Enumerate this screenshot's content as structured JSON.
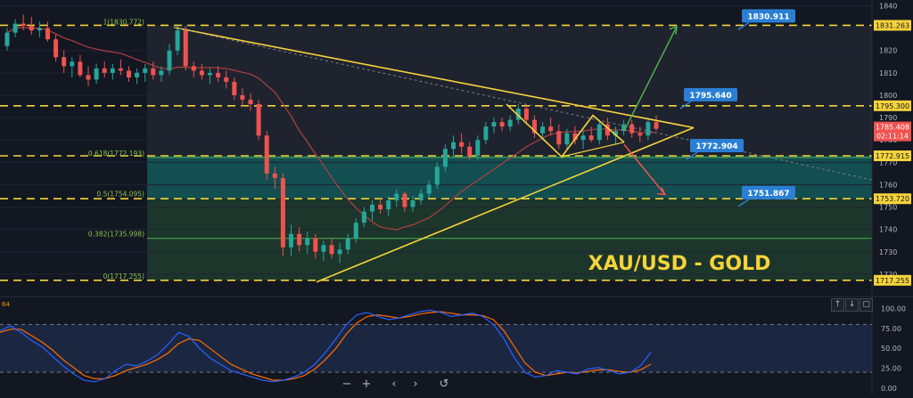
{
  "colors": {
    "background": "#131722",
    "up": "#26a69a",
    "down": "#ef5350",
    "level": "#f5d33b",
    "triangle": "#f5d33b",
    "target_up": "#4caf50",
    "target_down": "#ef5350",
    "callout": "#2a7fd4",
    "fib_green": "#4caf50",
    "fib_teal": "#145457",
    "stoch_k": "#2962ff",
    "stoch_d": "#ff6d00",
    "ma": "#b04040",
    "title": "#f5d33b"
  },
  "chart_data": {
    "type": "candlestick",
    "symbol_label": "XAU/USD - GOLD",
    "price_axis": {
      "ylim": [
        1712,
        1841
      ],
      "ticks": [
        1840,
        1830,
        1820,
        1810,
        1800,
        1790,
        1780,
        1770,
        1760,
        1750,
        1740,
        1730,
        1720
      ],
      "current_price": "1785.408",
      "countdown": "02:11:14"
    },
    "level_tags": [
      "1831.263",
      "1795.300",
      "1772.915",
      "1753.720",
      "1717.255"
    ],
    "horizontal_levels": [
      1831.263,
      1795.3,
      1772.915,
      1753.72,
      1717.255
    ],
    "fib_labels": [
      {
        "text": "1(1830.772)",
        "price": 1830.772
      },
      {
        "text": "0.618(1772.193)",
        "price": 1772.193
      },
      {
        "text": "0.5(1754.095)",
        "price": 1754.095
      },
      {
        "text": "0.382(1735.998)",
        "price": 1735.998
      },
      {
        "text": "0(1717.255)",
        "price": 1717.255
      }
    ],
    "callouts": [
      {
        "text": "1830.911",
        "price": 1830.911
      },
      {
        "text": "1795.640",
        "price": 1795.64
      },
      {
        "text": "1772.904",
        "price": 1772.904
      },
      {
        "text": "1751.867",
        "price": 1751.867
      }
    ],
    "candles": [
      [
        1822,
        1830,
        1820,
        1828
      ],
      [
        1828,
        1834,
        1826,
        1832
      ],
      [
        1832,
        1836,
        1829,
        1831
      ],
      [
        1831,
        1835,
        1827,
        1829
      ],
      [
        1829,
        1833,
        1826,
        1830
      ],
      [
        1830,
        1833,
        1824,
        1825
      ],
      [
        1825,
        1827,
        1815,
        1817
      ],
      [
        1817,
        1820,
        1810,
        1813
      ],
      [
        1813,
        1817,
        1808,
        1815
      ],
      [
        1815,
        1818,
        1808,
        1809
      ],
      [
        1809,
        1813,
        1804,
        1807
      ],
      [
        1807,
        1814,
        1805,
        1812
      ],
      [
        1812,
        1815,
        1808,
        1810
      ],
      [
        1810,
        1814,
        1807,
        1812
      ],
      [
        1812,
        1816,
        1809,
        1811
      ],
      [
        1811,
        1813,
        1806,
        1808
      ],
      [
        1808,
        1812,
        1805,
        1810
      ],
      [
        1810,
        1814,
        1806,
        1812
      ],
      [
        1812,
        1815,
        1807,
        1809
      ],
      [
        1809,
        1813,
        1806,
        1811
      ],
      [
        1811,
        1823,
        1809,
        1820
      ],
      [
        1820,
        1831,
        1818,
        1829
      ],
      [
        1829,
        1831,
        1811,
        1813
      ],
      [
        1813,
        1815,
        1808,
        1811
      ],
      [
        1811,
        1814,
        1807,
        1809
      ],
      [
        1809,
        1812,
        1805,
        1810
      ],
      [
        1810,
        1813,
        1806,
        1808
      ],
      [
        1808,
        1811,
        1803,
        1806
      ],
      [
        1806,
        1808,
        1798,
        1800
      ],
      [
        1800,
        1803,
        1795,
        1798
      ],
      [
        1798,
        1801,
        1793,
        1796
      ],
      [
        1796,
        1798,
        1780,
        1782
      ],
      [
        1782,
        1784,
        1762,
        1765
      ],
      [
        1765,
        1768,
        1758,
        1763
      ],
      [
        1763,
        1765,
        1728,
        1732
      ],
      [
        1732,
        1742,
        1728,
        1738
      ],
      [
        1738,
        1741,
        1730,
        1733
      ],
      [
        1733,
        1739,
        1729,
        1736
      ],
      [
        1736,
        1738,
        1727,
        1730
      ],
      [
        1730,
        1735,
        1726,
        1733
      ],
      [
        1733,
        1736,
        1727,
        1729
      ],
      [
        1729,
        1734,
        1725,
        1731
      ],
      [
        1731,
        1738,
        1729,
        1736
      ],
      [
        1736,
        1745,
        1734,
        1743
      ],
      [
        1743,
        1750,
        1741,
        1748
      ],
      [
        1748,
        1753,
        1744,
        1751
      ],
      [
        1751,
        1754,
        1747,
        1749
      ],
      [
        1749,
        1755,
        1746,
        1753
      ],
      [
        1753,
        1758,
        1750,
        1756
      ],
      [
        1756,
        1757,
        1748,
        1750
      ],
      [
        1750,
        1755,
        1748,
        1753
      ],
      [
        1753,
        1758,
        1751,
        1756
      ],
      [
        1756,
        1762,
        1754,
        1760
      ],
      [
        1760,
        1770,
        1758,
        1768
      ],
      [
        1768,
        1778,
        1766,
        1776
      ],
      [
        1776,
        1782,
        1772,
        1779
      ],
      [
        1779,
        1783,
        1774,
        1777
      ],
      [
        1777,
        1779,
        1771,
        1773
      ],
      [
        1773,
        1782,
        1771,
        1780
      ],
      [
        1780,
        1788,
        1778,
        1786
      ],
      [
        1786,
        1790,
        1783,
        1788
      ],
      [
        1788,
        1790,
        1784,
        1786
      ],
      [
        1786,
        1791,
        1784,
        1789
      ],
      [
        1789,
        1796,
        1787,
        1794
      ],
      [
        1794,
        1796,
        1787,
        1789
      ],
      [
        1789,
        1791,
        1781,
        1783
      ],
      [
        1783,
        1788,
        1780,
        1786
      ],
      [
        1786,
        1790,
        1782,
        1784
      ],
      [
        1784,
        1787,
        1776,
        1778
      ],
      [
        1778,
        1785,
        1776,
        1783
      ],
      [
        1783,
        1786,
        1778,
        1780
      ],
      [
        1780,
        1784,
        1776,
        1782
      ],
      [
        1782,
        1786,
        1779,
        1780
      ],
      [
        1780,
        1789,
        1778,
        1787
      ],
      [
        1787,
        1790,
        1780,
        1782
      ],
      [
        1782,
        1786,
        1778,
        1784
      ],
      [
        1784,
        1789,
        1782,
        1787
      ],
      [
        1787,
        1789,
        1781,
        1783
      ],
      [
        1783,
        1786,
        1779,
        1782
      ],
      [
        1782,
        1790,
        1780,
        1788
      ],
      [
        1788,
        1791,
        1784,
        1785
      ]
    ],
    "stochastic": {
      "ylim": [
        0,
        105
      ],
      "ticks": [
        "100.00",
        "75.00",
        "50.00",
        "25.00",
        "0.00"
      ],
      "level_marks": [
        80,
        20
      ],
      "top_left_label": "64",
      "k": [
        72,
        78,
        70,
        60,
        52,
        40,
        28,
        18,
        10,
        8,
        12,
        22,
        30,
        28,
        34,
        42,
        55,
        70,
        65,
        50,
        38,
        30,
        22,
        18,
        14,
        10,
        8,
        10,
        14,
        20,
        30,
        45,
        62,
        80,
        92,
        95,
        90,
        86,
        88,
        92,
        96,
        98,
        95,
        90,
        92,
        94,
        90,
        80,
        62,
        38,
        20,
        14,
        16,
        22,
        20,
        18,
        24,
        26,
        22,
        18,
        20,
        28,
        45
      ],
      "d": [
        70,
        74,
        74,
        66,
        58,
        48,
        36,
        26,
        16,
        12,
        12,
        16,
        22,
        26,
        30,
        36,
        44,
        56,
        62,
        60,
        50,
        40,
        30,
        24,
        18,
        14,
        10,
        10,
        12,
        16,
        24,
        36,
        50,
        68,
        82,
        90,
        92,
        90,
        88,
        90,
        93,
        95,
        96,
        94,
        92,
        92,
        91,
        86,
        72,
        52,
        32,
        20,
        16,
        18,
        20,
        19,
        21,
        23,
        23,
        21,
        20,
        23,
        30
      ]
    }
  },
  "controls": {
    "zoom_out": "−",
    "zoom_in": "+",
    "scroll_left": "‹",
    "scroll_right": "›",
    "reset": "↺",
    "pane_up": "↑",
    "pane_down": "↓",
    "pane_max": "▢"
  }
}
